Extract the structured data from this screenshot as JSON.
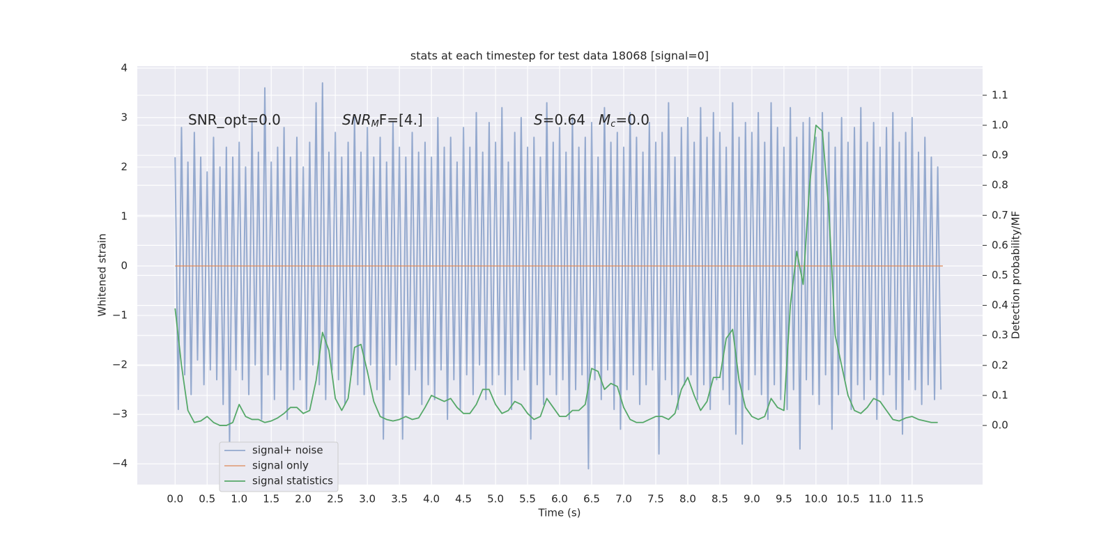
{
  "chart_data": {
    "type": "line",
    "title": "stats at each timestep for test data 18068 [signal=0]",
    "xlabel": "Time (s)",
    "ylabel": "Whitened strain",
    "y2label": "Detection probability/MF",
    "annotations": [
      {
        "main": "SNR_opt=0.0"
      },
      {
        "main": "SNR",
        "sub": "M",
        "tail": "F=[4.]"
      },
      {
        "main": "S",
        "tail": "=0.64"
      },
      {
        "main": "M",
        "sub": "c",
        "tail": "=0.0"
      }
    ],
    "grid": true,
    "legend": "lower left",
    "xlim": [
      -0.59,
      12.6
    ],
    "ylim": [
      -4.42,
      4.04
    ],
    "y2lim": [
      -0.197,
      1.197
    ],
    "xticks": [
      {
        "value": 0,
        "label": "0.0"
      },
      0.5,
      {
        "value": 1,
        "label": "1.0"
      },
      1.5,
      {
        "value": 2,
        "label": "2.0"
      },
      2.5,
      {
        "value": 3,
        "label": "3.0"
      },
      3.5,
      {
        "value": 4,
        "label": "4.0"
      },
      4.5,
      {
        "value": 5,
        "label": "5.0"
      },
      5.5,
      {
        "value": 6,
        "label": "6.0"
      },
      6.5,
      {
        "value": 7,
        "label": "7.0"
      },
      7.5,
      {
        "value": 8,
        "label": "8.0"
      },
      8.5,
      {
        "value": 9,
        "label": "9.0"
      },
      9.5,
      {
        "value": 10,
        "label": "10.0"
      },
      10.5,
      {
        "value": 11,
        "label": "11.0"
      },
      11.5
    ],
    "yticks": [
      {
        "value": -4,
        "label": "−4"
      },
      {
        "value": -3,
        "label": "−3"
      },
      {
        "value": -2,
        "label": "−2"
      },
      {
        "value": -1,
        "label": "−1"
      },
      0,
      1,
      2,
      3,
      4
    ],
    "y2ticks": [
      {
        "value": 0,
        "label": "0.0"
      },
      0.1,
      0.2,
      0.3,
      0.4,
      0.5,
      0.6,
      0.7,
      0.8,
      0.9,
      {
        "value": 1,
        "label": "1.0"
      },
      1.1
    ],
    "series": [
      {
        "name": "signal+ noise",
        "color": "#4c72b0",
        "x": [
          0,
          0.05,
          0.1,
          0.15,
          0.2,
          0.25,
          0.3,
          0.35,
          0.4,
          0.45,
          0.5,
          0.55,
          0.6,
          0.65,
          0.7,
          0.75,
          0.8,
          0.85,
          0.9,
          0.95,
          1,
          1.05,
          1.1,
          1.15,
          1.2,
          1.25,
          1.3,
          1.35,
          1.4,
          1.45,
          1.5,
          1.55,
          1.6,
          1.65,
          1.7,
          1.75,
          1.8,
          1.85,
          1.9,
          1.95,
          2,
          2.05,
          2.1,
          2.15,
          2.2,
          2.25,
          2.3,
          2.35,
          2.4,
          2.45,
          2.5,
          2.55,
          2.6,
          2.65,
          2.7,
          2.75,
          2.8,
          2.85,
          2.9,
          2.95,
          3,
          3.05,
          3.1,
          3.15,
          3.2,
          3.25,
          3.3,
          3.35,
          3.4,
          3.45,
          3.5,
          3.55,
          3.6,
          3.65,
          3.7,
          3.75,
          3.8,
          3.85,
          3.9,
          3.95,
          4,
          4.05,
          4.1,
          4.15,
          4.2,
          4.25,
          4.3,
          4.35,
          4.4,
          4.45,
          4.5,
          4.55,
          4.6,
          4.65,
          4.7,
          4.75,
          4.8,
          4.85,
          4.9,
          4.95,
          5,
          5.05,
          5.1,
          5.15,
          5.2,
          5.25,
          5.3,
          5.35,
          5.4,
          5.45,
          5.5,
          5.55,
          5.6,
          5.65,
          5.7,
          5.75,
          5.8,
          5.85,
          5.9,
          5.95,
          6,
          6.05,
          6.1,
          6.15,
          6.2,
          6.25,
          6.3,
          6.35,
          6.4,
          6.45,
          6.5,
          6.55,
          6.6,
          6.65,
          6.7,
          6.75,
          6.8,
          6.85,
          6.9,
          6.95,
          7,
          7.05,
          7.1,
          7.15,
          7.2,
          7.25,
          7.3,
          7.35,
          7.4,
          7.45,
          7.5,
          7.55,
          7.6,
          7.65,
          7.7,
          7.75,
          7.8,
          7.85,
          7.9,
          7.95,
          8,
          8.05,
          8.1,
          8.15,
          8.2,
          8.25,
          8.3,
          8.35,
          8.4,
          8.45,
          8.5,
          8.55,
          8.6,
          8.65,
          8.7,
          8.75,
          8.8,
          8.85,
          8.9,
          8.95,
          9,
          9.05,
          9.1,
          9.15,
          9.2,
          9.25,
          9.3,
          9.35,
          9.4,
          9.45,
          9.5,
          9.55,
          9.6,
          9.65,
          9.7,
          9.75,
          9.8,
          9.85,
          9.9,
          9.95,
          10,
          10.05,
          10.1,
          10.15,
          10.2,
          10.25,
          10.3,
          10.35,
          10.4,
          10.45,
          10.5,
          10.55,
          10.6,
          10.65,
          10.7,
          10.75,
          10.8,
          10.85,
          10.9,
          10.95,
          11,
          11.05,
          11.1,
          11.15,
          11.2,
          11.25,
          11.3,
          11.35,
          11.4,
          11.45,
          11.5,
          11.55,
          11.6,
          11.65,
          11.7,
          11.75,
          11.8,
          11.85,
          11.9,
          11.95
        ],
        "values": [
          2.2,
          -2.9,
          2.8,
          -2.2,
          2.1,
          -2.6,
          2.7,
          -1.9,
          2.2,
          -2.4,
          1.9,
          -2.1,
          2.6,
          -2.3,
          2.0,
          -2.8,
          2.4,
          -3.6,
          2.2,
          -2.1,
          2.5,
          -2.3,
          2.0,
          -2.6,
          2.9,
          -2.0,
          2.3,
          -3.1,
          3.6,
          -2.2,
          2.1,
          -2.7,
          2.4,
          -2.1,
          2.8,
          -3.1,
          2.2,
          -2.5,
          2.6,
          -2.3,
          2.0,
          -2.9,
          2.5,
          -2.0,
          3.3,
          -2.4,
          3.7,
          -2.7,
          2.3,
          -2.1,
          2.7,
          -2.3,
          2.2,
          -2.8,
          2.5,
          -2.2,
          3.0,
          -2.4,
          2.3,
          -2.6,
          2.8,
          -2.0,
          2.2,
          -2.5,
          2.6,
          -3.5,
          2.1,
          -2.3,
          2.9,
          -2.0,
          2.4,
          -3.5,
          2.2,
          -2.6,
          2.7,
          -2.1,
          2.3,
          -2.8,
          2.5,
          -2.4,
          2.2,
          -2.7,
          3.0,
          -2.1,
          2.4,
          -3.1,
          2.6,
          -2.3,
          2.1,
          -2.9,
          2.8,
          -2.2,
          2.4,
          -2.6,
          3.1,
          -2.0,
          2.3,
          -2.7,
          2.9,
          -2.4,
          2.5,
          -2.2,
          3.2,
          -2.6,
          2.1,
          -2.9,
          2.7,
          -2.3,
          3.0,
          -2.1,
          2.4,
          -3.5,
          2.6,
          -2.4,
          2.2,
          -2.8,
          3.3,
          -2.2,
          2.5,
          -2.6,
          2.8,
          -2.3,
          2.3,
          -3.1,
          3.0,
          -2.5,
          2.4,
          -2.2,
          2.6,
          -4.1,
          2.9,
          -2.3,
          2.2,
          -2.7,
          3.2,
          -2.1,
          2.5,
          -2.9,
          2.7,
          -3.3,
          2.4,
          -2.5,
          3.1,
          -2.2,
          2.6,
          -2.8,
          2.3,
          -2.4,
          2.9,
          -2.1,
          2.5,
          -3.8,
          2.7,
          -2.3,
          3.3,
          -2.6,
          2.2,
          -2.9,
          2.8,
          -2.4,
          3.0,
          -2.2,
          2.5,
          -2.7,
          3.2,
          -2.4,
          2.6,
          -2.9,
          3.1,
          -2.3,
          2.7,
          -2.5,
          2.4,
          -2.8,
          3.3,
          -3.4,
          2.6,
          -3.6,
          2.9,
          -2.5,
          2.7,
          -2.2,
          3.1,
          -2.6,
          2.5,
          -3.1,
          3.3,
          -2.4,
          2.8,
          -2.7,
          2.4,
          -2.9,
          3.2,
          -2.5,
          2.6,
          -3.7,
          2.9,
          -2.3,
          3.0,
          -2.6,
          2.6,
          -2.8,
          3.1,
          -2.2,
          2.7,
          -3.3,
          2.4,
          -2.6,
          3.0,
          -2.3,
          2.5,
          -2.9,
          2.8,
          -2.4,
          3.2,
          -2.7,
          2.5,
          -2.3,
          2.9,
          -3.1,
          2.4,
          -2.6,
          2.8,
          -2.2,
          3.1,
          -2.9,
          2.5,
          -3.4,
          2.7,
          -2.3,
          3.0,
          -2.5,
          2.3,
          -2.8,
          2.6,
          -2.4,
          2.2,
          -2.7,
          2.0,
          -2.5
        ]
      },
      {
        "name": "signal only",
        "color": "#dd8452",
        "x": [
          0,
          11.98
        ],
        "values": [
          0,
          0
        ]
      },
      {
        "name": "signal statistics",
        "color": "#55a868",
        "axis": "y2",
        "x": [
          0,
          0.1,
          0.2,
          0.3,
          0.4,
          0.5,
          0.6,
          0.7,
          0.8,
          0.9,
          1,
          1.1,
          1.2,
          1.3,
          1.4,
          1.5,
          1.6,
          1.7,
          1.8,
          1.9,
          2,
          2.1,
          2.2,
          2.3,
          2.4,
          2.5,
          2.6,
          2.7,
          2.8,
          2.9,
          3,
          3.1,
          3.2,
          3.3,
          3.4,
          3.5,
          3.6,
          3.7,
          3.8,
          3.9,
          4,
          4.1,
          4.2,
          4.3,
          4.4,
          4.5,
          4.6,
          4.7,
          4.8,
          4.9,
          5,
          5.1,
          5.2,
          5.3,
          5.4,
          5.5,
          5.6,
          5.7,
          5.8,
          5.9,
          6,
          6.1,
          6.2,
          6.3,
          6.4,
          6.5,
          6.6,
          6.7,
          6.8,
          6.9,
          7,
          7.1,
          7.2,
          7.3,
          7.4,
          7.5,
          7.6,
          7.7,
          7.8,
          7.9,
          8,
          8.1,
          8.2,
          8.3,
          8.4,
          8.5,
          8.6,
          8.7,
          8.8,
          8.9,
          9,
          9.1,
          9.2,
          9.3,
          9.4,
          9.5,
          9.6,
          9.7,
          9.8,
          9.9,
          10,
          10.1,
          10.2,
          10.3,
          10.4,
          10.5,
          10.6,
          10.7,
          10.8,
          10.9,
          11,
          11.1,
          11.2,
          11.3,
          11.4,
          11.5,
          11.6,
          11.7,
          11.8,
          11.9
        ],
        "values": [
          0.39,
          0.2,
          0.05,
          0.01,
          0.015,
          0.03,
          0.01,
          0.0,
          0.0,
          0.01,
          0.07,
          0.03,
          0.02,
          0.02,
          0.01,
          0.015,
          0.025,
          0.04,
          0.06,
          0.06,
          0.04,
          0.05,
          0.15,
          0.31,
          0.25,
          0.09,
          0.05,
          0.09,
          0.26,
          0.27,
          0.18,
          0.08,
          0.03,
          0.02,
          0.015,
          0.02,
          0.03,
          0.02,
          0.025,
          0.06,
          0.1,
          0.09,
          0.08,
          0.09,
          0.06,
          0.04,
          0.04,
          0.07,
          0.12,
          0.12,
          0.07,
          0.04,
          0.05,
          0.08,
          0.07,
          0.04,
          0.02,
          0.03,
          0.09,
          0.06,
          0.03,
          0.03,
          0.05,
          0.05,
          0.07,
          0.19,
          0.18,
          0.12,
          0.14,
          0.13,
          0.06,
          0.02,
          0.01,
          0.01,
          0.02,
          0.03,
          0.03,
          0.02,
          0.04,
          0.12,
          0.16,
          0.1,
          0.05,
          0.08,
          0.16,
          0.16,
          0.29,
          0.32,
          0.15,
          0.06,
          0.03,
          0.02,
          0.03,
          0.09,
          0.06,
          0.05,
          0.4,
          0.58,
          0.47,
          0.8,
          1.0,
          0.98,
          0.72,
          0.3,
          0.2,
          0.1,
          0.05,
          0.04,
          0.06,
          0.09,
          0.08,
          0.05,
          0.02,
          0.015,
          0.025,
          0.03,
          0.02,
          0.015,
          0.01,
          0.01
        ]
      }
    ]
  }
}
